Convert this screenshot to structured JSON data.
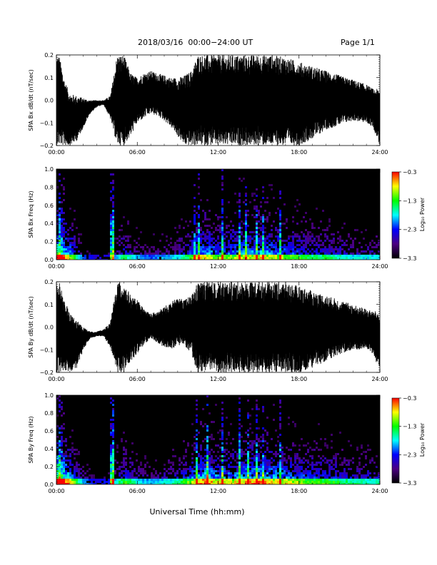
{
  "header": {
    "title": "2018/03/16  00:00−24:00 UT",
    "page": "Page 1/1"
  },
  "xlabel": "Universal Time (hh:mm)",
  "colorbar": {
    "label": "Log₁₀ Power",
    "ticks": [
      "−0.3",
      "−1.3",
      "−2.3",
      "−3.3"
    ],
    "tick_values": [
      -0.3,
      -1.3,
      -2.3,
      -3.3
    ],
    "range": [
      -3.3,
      -0.3
    ],
    "colormap": [
      "#000000",
      "#4b0082",
      "#0000ff",
      "#00ffff",
      "#00ff00",
      "#ffff00",
      "#ff0000"
    ]
  },
  "chart_data": [
    {
      "type": "line",
      "ylabel": "SPA Bx dB/dt (nT/sec)",
      "xlim": [
        "00:00",
        "24:00"
      ],
      "xticks": [
        "00:00",
        "06:00",
        "12:00",
        "18:00",
        "24:00"
      ],
      "ylim": [
        -0.2,
        0.2
      ],
      "yticks": [
        "0.2",
        "0.1",
        "0.0",
        "−0.1",
        "−0.2"
      ],
      "color": "#000000",
      "envelope_hours": [
        0,
        0.2,
        0.6,
        1.0,
        1.5,
        2.0,
        2.5,
        3.0,
        3.5,
        4.0,
        4.5,
        5.0,
        5.5,
        6.0,
        6.5,
        7.0,
        7.5,
        8.0,
        8.5,
        9.0,
        9.5,
        10.0,
        10.5,
        11.0,
        12.0,
        13.0,
        14.0,
        15.0,
        16.0,
        17.0,
        18.0,
        19.0,
        20.0,
        21.0,
        22.0,
        23.0,
        23.5,
        24.0
      ],
      "upper": [
        0.2,
        0.2,
        0.09,
        0.03,
        0.02,
        0.01,
        0.0,
        0.0,
        0.0,
        0.02,
        0.2,
        0.2,
        0.12,
        0.1,
        0.12,
        0.13,
        0.12,
        0.11,
        0.1,
        0.1,
        0.11,
        0.13,
        0.2,
        0.2,
        0.2,
        0.2,
        0.2,
        0.2,
        0.2,
        0.19,
        0.17,
        0.15,
        0.13,
        0.11,
        0.09,
        0.07,
        0.05,
        0.05
      ],
      "lower": [
        -0.2,
        -0.2,
        -0.2,
        -0.2,
        -0.18,
        -0.12,
        -0.06,
        -0.03,
        -0.02,
        -0.08,
        -0.2,
        -0.2,
        -0.16,
        -0.1,
        -0.08,
        -0.06,
        -0.07,
        -0.09,
        -0.12,
        -0.16,
        -0.2,
        -0.2,
        -0.2,
        -0.2,
        -0.2,
        -0.2,
        -0.2,
        -0.2,
        -0.2,
        -0.2,
        -0.2,
        -0.17,
        -0.13,
        -0.11,
        -0.09,
        -0.1,
        -0.12,
        -0.2
      ]
    },
    {
      "type": "heatmap",
      "ylabel": "SPA Bx Freq (Hz)",
      "xlim": [
        "00:00",
        "24:00"
      ],
      "xticks": [
        "00:00",
        "06:00",
        "12:00",
        "18:00",
        "24:00"
      ],
      "ylim": [
        0.0,
        1.0
      ],
      "yticks": [
        "1.0",
        "0.8",
        "0.6",
        "0.4",
        "0.2",
        "0.0"
      ],
      "zlim": [
        -3.3,
        -0.3
      ],
      "activity_hours": [
        0,
        1,
        2,
        3,
        4,
        5,
        6,
        7,
        8,
        9,
        10,
        11,
        12,
        13,
        14,
        15,
        16,
        17,
        18,
        19,
        20,
        21,
        22,
        23,
        24
      ],
      "activity": [
        0.9,
        0.55,
        0.2,
        0.1,
        0.15,
        0.4,
        0.25,
        0.2,
        0.25,
        0.3,
        0.45,
        0.6,
        0.5,
        0.5,
        0.55,
        0.6,
        0.55,
        0.5,
        0.45,
        0.4,
        0.4,
        0.35,
        0.3,
        0.3,
        0.3
      ],
      "bursts_hours": [
        0.3,
        4.1,
        4.2,
        10.3,
        10.6,
        12.3,
        13.6,
        14.1,
        14.9,
        15.3,
        16.6
      ],
      "bursts_strength": [
        0.6,
        1.0,
        0.9,
        0.6,
        0.6,
        0.5,
        0.5,
        0.55,
        0.55,
        0.5,
        0.45
      ]
    },
    {
      "type": "line",
      "ylabel": "SPA By dB/dt (nT/sec)",
      "xlim": [
        "00:00",
        "24:00"
      ],
      "xticks": [
        "00:00",
        "06:00",
        "12:00",
        "18:00",
        "24:00"
      ],
      "ylim": [
        -0.2,
        0.2
      ],
      "yticks": [
        "0.2",
        "0.1",
        "0.0",
        "−0.1",
        "−0.2"
      ],
      "color": "#000000",
      "envelope_hours": [
        0,
        0.2,
        0.6,
        1.0,
        1.5,
        2.0,
        2.5,
        3.0,
        3.5,
        4.0,
        4.5,
        5.0,
        5.5,
        6.0,
        6.5,
        7.0,
        7.5,
        8.0,
        8.5,
        9.0,
        9.5,
        10.0,
        10.5,
        11.0,
        12.0,
        13.0,
        14.0,
        15.0,
        16.0,
        17.0,
        18.0,
        19.0,
        20.0,
        21.0,
        22.0,
        23.0,
        23.5,
        24.0
      ],
      "upper": [
        0.2,
        0.2,
        0.12,
        0.06,
        0.03,
        0.0,
        -0.02,
        -0.02,
        -0.01,
        0.02,
        0.2,
        0.2,
        0.14,
        0.12,
        0.08,
        0.06,
        0.07,
        0.09,
        0.11,
        0.13,
        0.12,
        0.14,
        0.2,
        0.2,
        0.2,
        0.2,
        0.2,
        0.2,
        0.2,
        0.2,
        0.18,
        0.16,
        0.14,
        0.12,
        0.1,
        0.08,
        0.07,
        0.07
      ],
      "lower": [
        -0.2,
        -0.2,
        -0.2,
        -0.2,
        -0.18,
        -0.1,
        -0.05,
        -0.04,
        -0.04,
        -0.09,
        -0.2,
        -0.2,
        -0.15,
        -0.12,
        -0.08,
        -0.05,
        -0.07,
        -0.09,
        -0.1,
        -0.08,
        -0.08,
        -0.12,
        -0.2,
        -0.2,
        -0.2,
        -0.2,
        -0.2,
        -0.2,
        -0.2,
        -0.2,
        -0.2,
        -0.18,
        -0.15,
        -0.12,
        -0.1,
        -0.1,
        -0.12,
        -0.2
      ]
    },
    {
      "type": "heatmap",
      "ylabel": "SPA By Freq (Hz)",
      "xlim": [
        "00:00",
        "24:00"
      ],
      "xticks": [
        "00:00",
        "06:00",
        "12:00",
        "18:00",
        "24:00"
      ],
      "ylim": [
        0.0,
        1.0
      ],
      "yticks": [
        "1.0",
        "0.8",
        "0.6",
        "0.4",
        "0.2",
        "0.0"
      ],
      "zlim": [
        -3.3,
        -0.3
      ],
      "activity_hours": [
        0,
        1,
        2,
        3,
        4,
        5,
        6,
        7,
        8,
        9,
        10,
        11,
        12,
        13,
        14,
        15,
        16,
        17,
        18,
        19,
        20,
        21,
        22,
        23,
        24
      ],
      "activity": [
        0.95,
        0.6,
        0.25,
        0.12,
        0.18,
        0.45,
        0.3,
        0.25,
        0.3,
        0.35,
        0.5,
        0.65,
        0.55,
        0.55,
        0.6,
        0.65,
        0.6,
        0.55,
        0.5,
        0.45,
        0.45,
        0.4,
        0.35,
        0.35,
        0.35
      ],
      "bursts_hours": [
        0.3,
        4.1,
        4.2,
        10.4,
        11.2,
        12.3,
        13.6,
        14.2,
        14.9,
        15.3,
        16.6
      ],
      "bursts_strength": [
        0.65,
        1.0,
        0.9,
        0.65,
        0.55,
        0.5,
        0.55,
        0.6,
        0.55,
        0.55,
        0.45
      ]
    }
  ]
}
